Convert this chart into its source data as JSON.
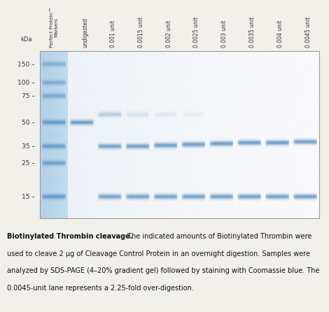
{
  "figure_bg": "#f2f0eb",
  "gel_bg": "#dce8f0",
  "gel_bg_right": "#eaf2f8",
  "marker_lane_color": "#c0d8ea",
  "marker_band_color": "#4a88b8",
  "sample_band_color": "#3575aa",
  "band_color_faint": "#88b8d8",
  "border_color": "#999999",
  "caption_bold": "Biotinylated Thrombin cleavage.",
  "caption_rest": " The indicated amounts of Biotinylated Thrombin were used to cleave 2 μg of Cleavage Control Protein in an overnight digestion. Samples were analyzed by SDS-PAGE (4–20% gradient gel) followed by staining with Coomassie blue. The 0.0045-unit lane represents a 2.25-fold over-digestion.",
  "kda_label": "kDa",
  "marker_label": "Perfect Protein™\nMarkers",
  "lane_labels": [
    "undigested",
    "0.001 unit",
    "0.0015 unit",
    "0.002 unit",
    "0.0025 unit",
    "0.003 unit",
    "0.0035 unit",
    "0.004 unit",
    "0.0045 unit"
  ],
  "mw_markers": [
    150,
    100,
    75,
    50,
    35,
    25,
    15
  ],
  "font_size_caption": 7.0,
  "font_size_labels": 6.0,
  "font_size_mw": 6.5
}
